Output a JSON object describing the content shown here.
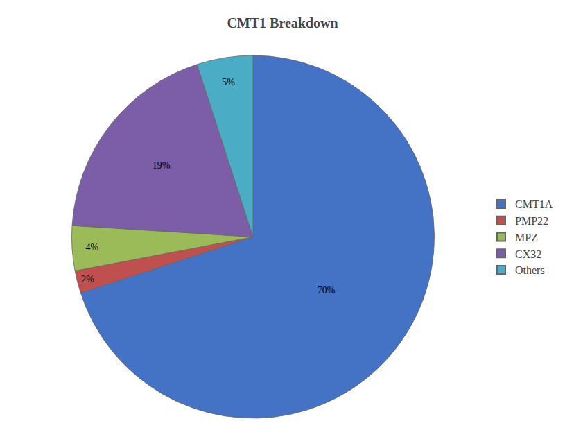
{
  "chart_data": {
    "type": "pie",
    "title": "CMT1 Breakdown",
    "categories": [
      "CMT1A",
      "PMP22",
      "MPZ",
      "CX32",
      "Others"
    ],
    "values": [
      70,
      2,
      4,
      19,
      5
    ],
    "value_labels": [
      "70%",
      "2%",
      "4%",
      "19%",
      "5%"
    ],
    "colors": [
      "#4472C4",
      "#C0504D",
      "#9BBB59",
      "#7B5EA7",
      "#4BACC6"
    ],
    "data_labels": true,
    "legend": "right"
  }
}
